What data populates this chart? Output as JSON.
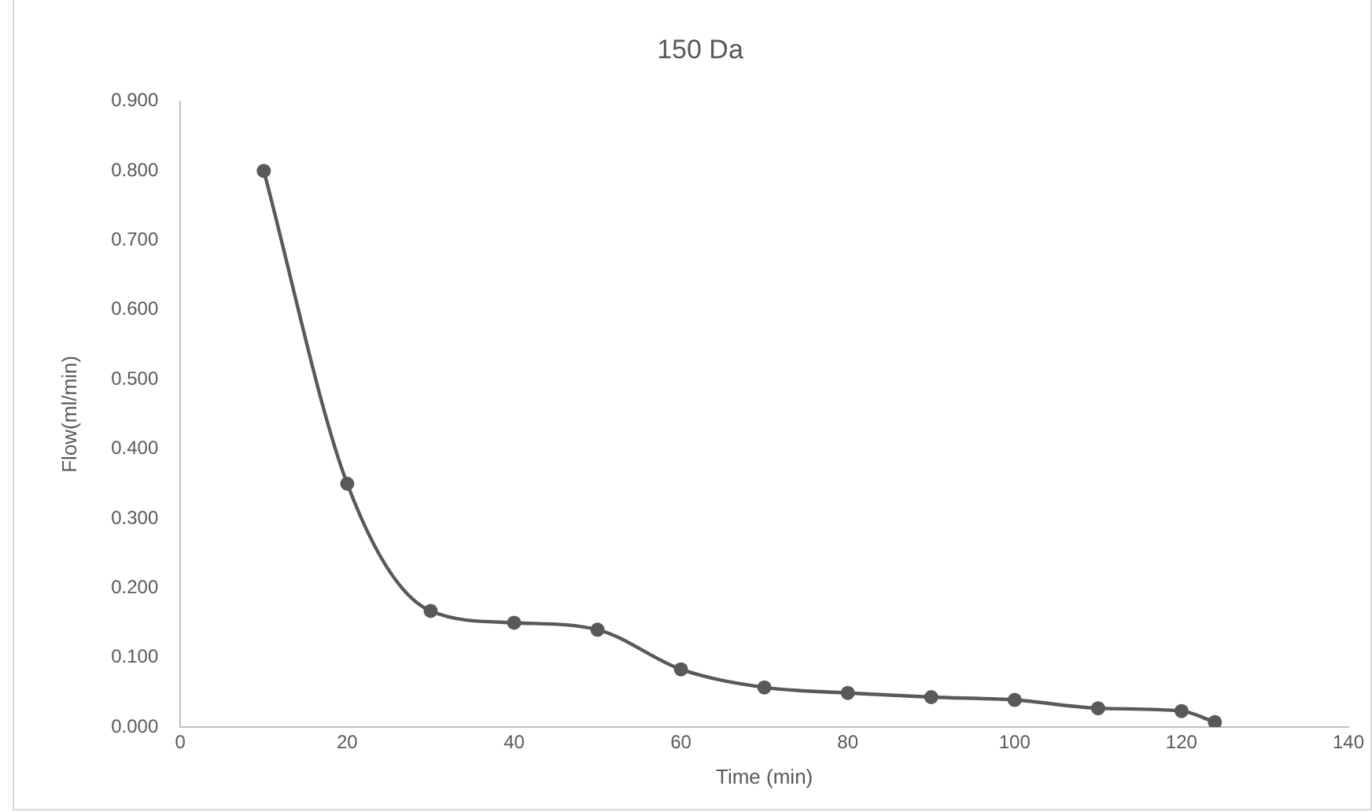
{
  "chart_data": {
    "type": "line",
    "title": "150 Da",
    "xlabel": "Time (min)",
    "ylabel": "Flow(ml/min)",
    "x": [
      10,
      20,
      30,
      40,
      50,
      60,
      70,
      80,
      90,
      100,
      110,
      120,
      124
    ],
    "series": [
      {
        "color": "#595959",
        "values": [
          0.8,
          0.35,
          0.167,
          0.15,
          0.14,
          0.083,
          0.057,
          0.049,
          0.043,
          0.039,
          0.027,
          0.023,
          0.007
        ]
      }
    ],
    "xlim": [
      0,
      140
    ],
    "xticks": [
      0,
      20,
      40,
      60,
      80,
      100,
      120,
      140
    ],
    "ylim": [
      0,
      0.9
    ],
    "yticks": [
      {
        "value": 0,
        "label": "0.000"
      },
      {
        "value": 0.1,
        "label": "0.100"
      },
      {
        "value": 0.2,
        "label": "0.200"
      },
      {
        "value": 0.3,
        "label": "0.300"
      },
      {
        "value": 0.4,
        "label": "0.400"
      },
      {
        "value": 0.5,
        "label": "0.500"
      },
      {
        "value": 0.6,
        "label": "0.600"
      },
      {
        "value": 0.7,
        "label": "0.700"
      },
      {
        "value": 0.8,
        "label": "0.800"
      },
      {
        "value": 0.9,
        "label": "0.900"
      }
    ],
    "grid": false,
    "legend": false,
    "marker": "circle",
    "line_style": "solid"
  }
}
